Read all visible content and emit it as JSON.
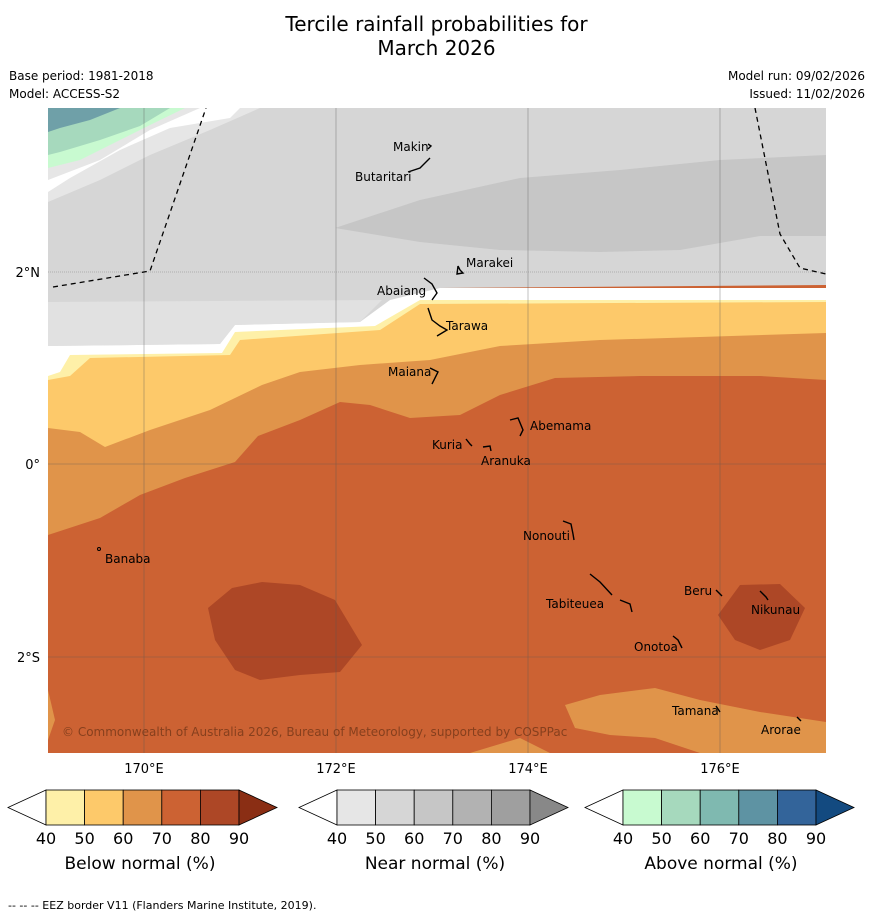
{
  "title": {
    "line1": "Tercile rainfall probabilities for",
    "line2": "March 2026"
  },
  "meta_left": {
    "base_period": "Base period: 1981-2018",
    "model": "Model: ACCESS-S2"
  },
  "meta_right": {
    "model_run": "Model run: 09/02/2026",
    "issued": "Issued: 11/02/2026"
  },
  "lat_labels": [
    "2°N",
    "0°",
    "2°S"
  ],
  "lon_labels": [
    "170°E",
    "172°E",
    "174°E",
    "176°E"
  ],
  "places": [
    "Makin",
    "Butaritari",
    "Marakei",
    "Abaiang",
    "Tarawa",
    "Maiana",
    "Abemama",
    "Kuria",
    "Aranuka",
    "Nonouti",
    "Banaba",
    "Beru",
    "Nikunau",
    "Tabiteuea",
    "Onotoa",
    "Tamana",
    "Arorae"
  ],
  "copyright": "© Commonwealth of Australia 2026, Bureau of Meteorology, supported by COSPPac",
  "colorbars": [
    {
      "label": "Below normal (%)",
      "ticks": [
        "40",
        "50",
        "60",
        "70",
        "80",
        "90"
      ],
      "colors": [
        "#fef0a8",
        "#fdc96a",
        "#e0944a",
        "#cc6233",
        "#ad4726",
        "#8a2e14"
      ]
    },
    {
      "label": "Near normal (%)",
      "ticks": [
        "40",
        "50",
        "60",
        "70",
        "80",
        "90"
      ],
      "colors": [
        "#e6e6e6",
        "#d6d6d6",
        "#c6c6c6",
        "#b2b2b2",
        "#9f9f9f",
        "#888888"
      ]
    },
    {
      "label": "Above normal (%)",
      "ticks": [
        "40",
        "50",
        "60",
        "70",
        "80",
        "90"
      ],
      "colors": [
        "#c8fad0",
        "#a6d9bd",
        "#7fb9b0",
        "#5e93a3",
        "#33649a",
        "#134a80"
      ]
    }
  ],
  "footer": "-- -- -- EEZ border V11 (Flanders Marine Institute, 2019)."
}
